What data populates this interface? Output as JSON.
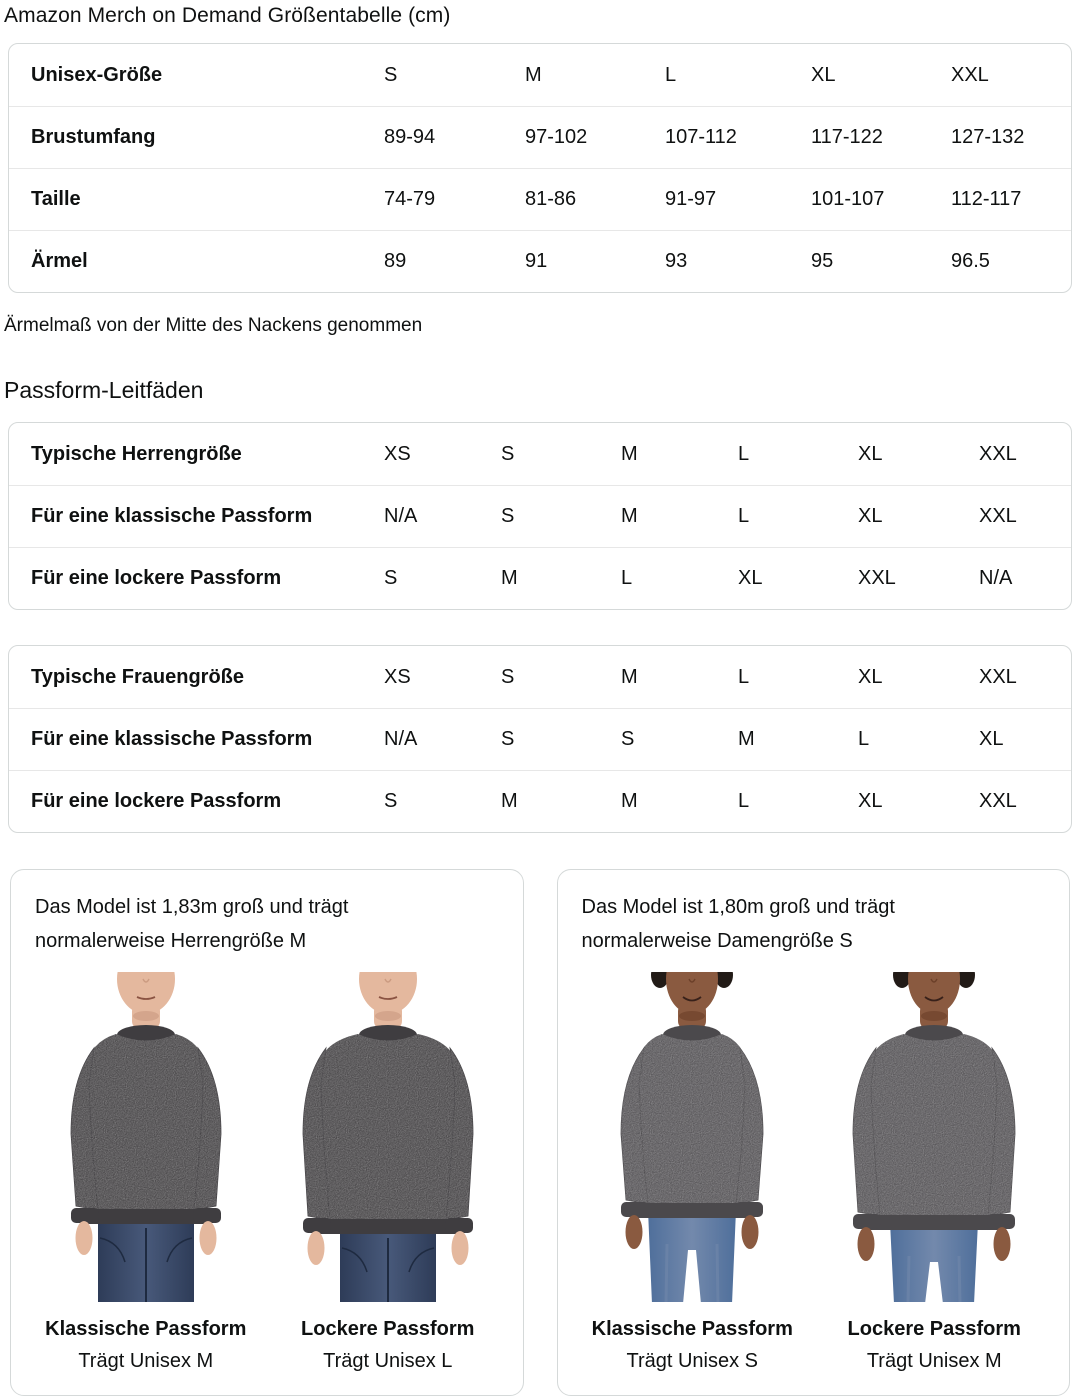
{
  "page": {
    "title": "Amazon Merch on Demand Größentabelle (cm)",
    "note": "Ärmelmaß von der Mitte des Nackens genommen",
    "fit_heading": "Passform-Leitfäden"
  },
  "size_table": {
    "header_label": "Unisex-Größe",
    "header_sizes": [
      "S",
      "M",
      "L",
      "XL",
      "XXL"
    ],
    "rows": [
      {
        "label": "Brustumfang",
        "values": [
          "89-94",
          "97-102",
          "107-112",
          "117-122",
          "127-132"
        ]
      },
      {
        "label": "Taille",
        "values": [
          "74-79",
          "81-86",
          "91-97",
          "101-107",
          "112-117"
        ]
      },
      {
        "label": "Ärmel",
        "values": [
          "89",
          "91",
          "93",
          "95",
          "96.5"
        ]
      }
    ]
  },
  "fit_tables": [
    {
      "rows": [
        {
          "label": "Typische Herrengröße",
          "values": [
            "XS",
            "S",
            "M",
            "L",
            "XL",
            "XXL"
          ]
        },
        {
          "label": "Für eine klassische Passform",
          "values": [
            "N/A",
            "S",
            "M",
            "L",
            "XL",
            "XXL"
          ]
        },
        {
          "label": "Für eine lockere Passform",
          "values": [
            "S",
            "M",
            "L",
            "XL",
            "XXL",
            "N/A"
          ]
        }
      ]
    },
    {
      "rows": [
        {
          "label": "Typische Frauengröße",
          "values": [
            "XS",
            "S",
            "M",
            "L",
            "XL",
            "XXL"
          ]
        },
        {
          "label": "Für eine klassische Passform",
          "values": [
            "N/A",
            "S",
            "S",
            "M",
            "L",
            "XL"
          ]
        },
        {
          "label": "Für eine lockere Passform",
          "values": [
            "S",
            "M",
            "M",
            "L",
            "XL",
            "XXL"
          ]
        }
      ]
    }
  ],
  "model_cards": [
    {
      "description": "Das Model ist 1,83m groß und trägt normalerweise Herrengröße M",
      "photos": [
        {
          "fit_label": "Klassische Passform",
          "size_label": "Trägt Unisex M"
        },
        {
          "fit_label": "Lockere Passform",
          "size_label": "Trägt Unisex L"
        }
      ]
    },
    {
      "description": "Das Model ist 1,80m groß und trägt normalerweise Damengröße S",
      "photos": [
        {
          "fit_label": "Klassische Passform",
          "size_label": "Trägt Unisex S"
        },
        {
          "fit_label": "Lockere Passform",
          "size_label": "Trägt Unisex M"
        }
      ]
    }
  ],
  "colors": {
    "text": "#0f1111",
    "border": "#d5d9d9",
    "divider": "#e7e7e7",
    "sweatshirt_dark": "#4e4c4e",
    "sweatshirt_dark_rib": "#3f3d40",
    "sweatshirt_light": "#5c5a5d",
    "sweatshirt_light_rib": "#4b494c",
    "skin_light": "#e4b89e",
    "skin_light_shadow": "#c08f75",
    "skin_dark": "#8a5a40",
    "skin_dark_shadow": "#5f3520",
    "jeans_dark": "#2e3c58",
    "jeans_dark_hi": "#48597a",
    "jeans_light": "#4f6f9b",
    "jeans_light_hi": "#7389ac",
    "jeans_seam": "#1e2a40",
    "hair": "#221b17",
    "mouth_light": "#8a5342",
    "mouth_dark": "#38211a"
  }
}
